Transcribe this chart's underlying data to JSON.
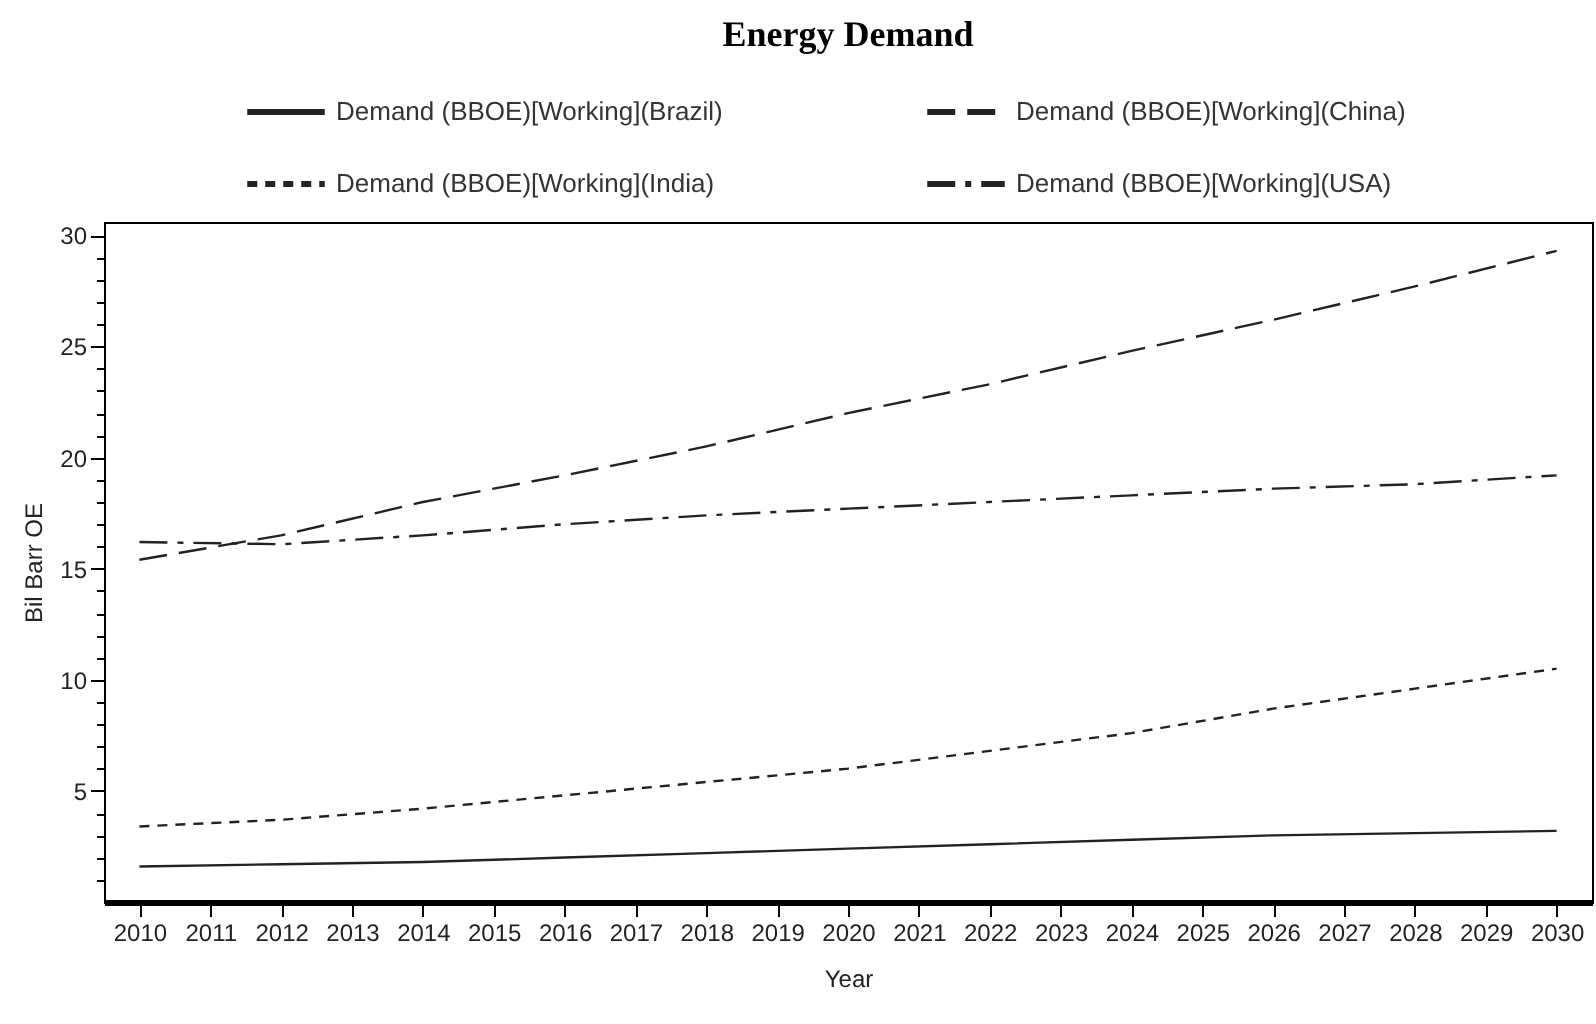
{
  "chart_data": {
    "type": "line",
    "title": "Energy Demand",
    "xlabel": "Year",
    "ylabel": "Bil Barr OE",
    "x": [
      2010,
      2012,
      2014,
      2016,
      2018,
      2020,
      2022,
      2024,
      2026,
      2028,
      2030
    ],
    "series": [
      {
        "name": "Demand (BBOE)[Working](Brazil)",
        "color": "#222222",
        "line_style": "solid",
        "values": [
          1.6,
          1.7,
          1.8,
          2.0,
          2.2,
          2.4,
          2.6,
          2.8,
          3.0,
          3.1,
          3.2
        ]
      },
      {
        "name": "Demand (BBOE)[Working](China)",
        "color": "#222222",
        "line_style": "dashed",
        "values": [
          15.4,
          16.5,
          18.0,
          19.2,
          20.5,
          22.0,
          23.3,
          24.8,
          26.2,
          27.7,
          29.3
        ]
      },
      {
        "name": "Demand (BBOE)[Working](India)",
        "color": "#222222",
        "line_style": "dotted",
        "values": [
          3.4,
          3.7,
          4.2,
          4.8,
          5.4,
          6.0,
          6.8,
          7.6,
          8.7,
          9.6,
          10.5
        ]
      },
      {
        "name": "Demand (BBOE)[Working](USA)",
        "color": "#222222",
        "line_style": "dashdot",
        "values": [
          16.2,
          16.1,
          16.5,
          17.0,
          17.4,
          17.7,
          18.0,
          18.3,
          18.6,
          18.8,
          19.2
        ]
      }
    ],
    "xlim": [
      2009.5,
      2030.5
    ],
    "xticks": [
      2010,
      2011,
      2012,
      2013,
      2014,
      2015,
      2016,
      2017,
      2018,
      2019,
      2020,
      2021,
      2022,
      2023,
      2024,
      2025,
      2026,
      2027,
      2028,
      2029,
      2030
    ],
    "ylim": [
      0,
      30.6
    ],
    "yticks": [
      {
        "value": 1,
        "label": null
      },
      {
        "value": 2,
        "label": null
      },
      {
        "value": 3,
        "label": null
      },
      {
        "value": 4,
        "label": null
      },
      5,
      {
        "value": 6,
        "label": null
      },
      {
        "value": 7,
        "label": null
      },
      {
        "value": 8,
        "label": null
      },
      {
        "value": 9,
        "label": null
      },
      10,
      {
        "value": 11,
        "label": null
      },
      {
        "value": 12,
        "label": null
      },
      {
        "value": 13,
        "label": null
      },
      {
        "value": 14,
        "label": null
      },
      15,
      {
        "value": 16,
        "label": null
      },
      {
        "value": 17,
        "label": null
      },
      {
        "value": 18,
        "label": null
      },
      {
        "value": 19,
        "label": null
      },
      20,
      {
        "value": 21,
        "label": null
      },
      {
        "value": 22,
        "label": null
      },
      {
        "value": 23,
        "label": null
      },
      {
        "value": 24,
        "label": null
      },
      25,
      {
        "value": 26,
        "label": null
      },
      {
        "value": 27,
        "label": null
      },
      {
        "value": 28,
        "label": null
      },
      {
        "value": 29,
        "label": null
      },
      30
    ],
    "legend": "top"
  }
}
